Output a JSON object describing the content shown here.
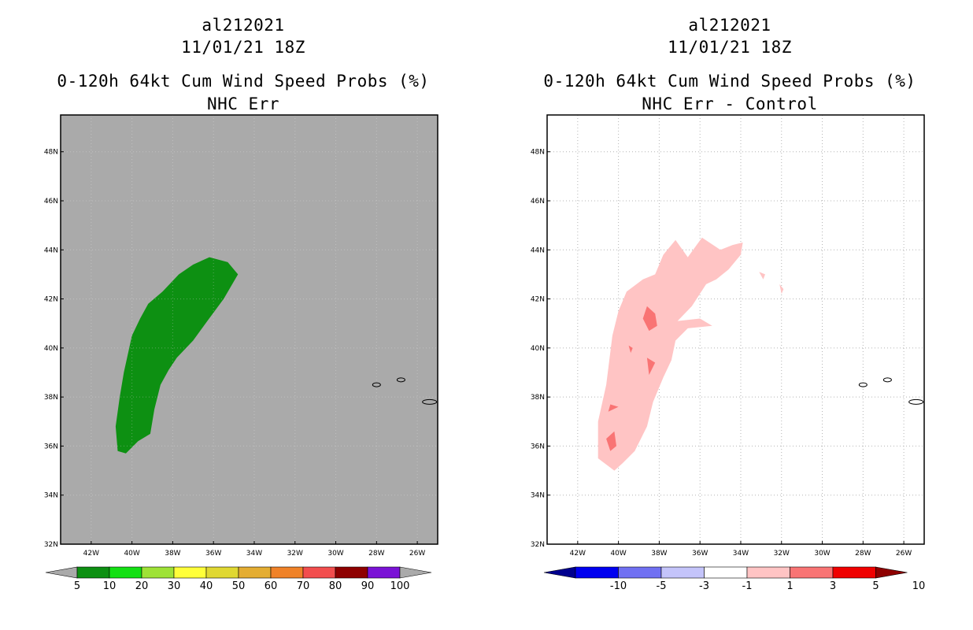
{
  "colors": {
    "left_background": "#aaaaaa",
    "right_background": "#ffffff",
    "prob_green": "#0d9012",
    "diff_light_pink": "#ffc4c4",
    "diff_pink": "#f97474"
  },
  "axes": {
    "lat_labels": [
      "48N",
      "46N",
      "44N",
      "42N",
      "40N",
      "38N",
      "36N",
      "34N",
      "32N"
    ],
    "lon_labels": [
      "42W",
      "40W",
      "38W",
      "36W",
      "34W",
      "32W",
      "30W",
      "28W",
      "26W"
    ],
    "lat_range": [
      32,
      49.5
    ],
    "lon_range": [
      -43.5,
      -25
    ]
  },
  "left": {
    "title_line1": "al212021",
    "title_line2": "11/01/21 18Z",
    "title_line3": "0-120h 64kt Cum Wind Speed Probs (%)",
    "title_line4": "NHC Err",
    "colorbar": {
      "labels": [
        "5",
        "10",
        "20",
        "30",
        "40",
        "50",
        "60",
        "70",
        "80",
        "90",
        "100"
      ],
      "colors": [
        "#aaaaaa",
        "#0d9012",
        "#13e013",
        "#9ee236",
        "#ffff3a",
        "#e0d832",
        "#e4ad32",
        "#f08228",
        "#f24e4e",
        "#8e0000",
        "#7a12d6",
        "#aaaaaa"
      ]
    }
  },
  "right": {
    "title_line1": "al212021",
    "title_line2": "11/01/21 18Z",
    "title_line3": "0-120h 64kt Cum Wind Speed Probs (%)",
    "title_line4": "NHC Err - Control",
    "colorbar": {
      "labels": [
        "-10",
        "-5",
        "-3",
        "-1",
        "1",
        "3",
        "5",
        "10"
      ],
      "colors": [
        "#00008e",
        "#0000f0",
        "#7070f2",
        "#c4c4fa",
        "#ffffff",
        "#ffc4c4",
        "#f97474",
        "#f00000",
        "#8e0000"
      ]
    }
  },
  "chart_data": [
    {
      "type": "map",
      "title": "0-120h 64kt Cum Wind Speed Probs (%) - NHC Err",
      "regions": [
        {
          "category": "5-10%",
          "lon_lat": [
            [
              -40.7,
              35.8
            ],
            [
              -40.8,
              36.8
            ],
            [
              -40.6,
              38.0
            ],
            [
              -40.4,
              39.0
            ],
            [
              -40.0,
              40.5
            ],
            [
              -39.6,
              41.2
            ],
            [
              -39.2,
              41.8
            ],
            [
              -38.5,
              42.3
            ],
            [
              -37.7,
              43.0
            ],
            [
              -37.0,
              43.4
            ],
            [
              -36.2,
              43.7
            ],
            [
              -35.3,
              43.5
            ],
            [
              -34.8,
              43.0
            ],
            [
              -35.5,
              42.0
            ],
            [
              -36.3,
              41.1
            ],
            [
              -37.0,
              40.3
            ],
            [
              -37.8,
              39.6
            ],
            [
              -38.2,
              39.1
            ],
            [
              -38.6,
              38.5
            ],
            [
              -38.9,
              37.5
            ],
            [
              -39.1,
              36.5
            ],
            [
              -39.7,
              36.2
            ],
            [
              -40.3,
              35.7
            ]
          ]
        }
      ],
      "islands_lon_lat": [
        [
          -28.0,
          38.5
        ],
        [
          -26.8,
          38.7
        ],
        [
          -25.4,
          37.8
        ]
      ]
    },
    {
      "type": "map",
      "title": "0-120h 64kt Cum Wind Speed Probs (%) - NHC Err - Control",
      "regions": [
        {
          "category": "1-3",
          "lon_lat": [
            [
              -40.2,
              35.0
            ],
            [
              -41.0,
              35.5
            ],
            [
              -41.0,
              37.0
            ],
            [
              -40.6,
              38.5
            ],
            [
              -40.3,
              40.5
            ],
            [
              -40.0,
              41.5
            ],
            [
              -39.6,
              42.3
            ],
            [
              -38.8,
              42.8
            ],
            [
              -38.2,
              43.0
            ],
            [
              -37.8,
              43.8
            ],
            [
              -37.2,
              44.4
            ],
            [
              -36.6,
              43.7
            ],
            [
              -35.9,
              44.5
            ],
            [
              -35.0,
              44.0
            ],
            [
              -34.4,
              44.2
            ],
            [
              -33.9,
              44.3
            ],
            [
              -34.0,
              43.8
            ],
            [
              -34.6,
              43.2
            ],
            [
              -35.2,
              42.8
            ],
            [
              -35.7,
              42.6
            ],
            [
              -36.4,
              41.7
            ],
            [
              -37.1,
              41.1
            ],
            [
              -36.0,
              41.2
            ],
            [
              -35.4,
              40.9
            ],
            [
              -36.6,
              40.8
            ],
            [
              -37.2,
              40.3
            ],
            [
              -37.4,
              39.5
            ],
            [
              -37.8,
              38.8
            ],
            [
              -38.3,
              37.8
            ],
            [
              -38.6,
              36.8
            ],
            [
              -39.2,
              35.8
            ],
            [
              -39.8,
              35.3
            ]
          ]
        },
        {
          "category": "1-3",
          "lon_lat": [
            [
              -33.1,
              43.1
            ],
            [
              -32.8,
              43.0
            ],
            [
              -32.9,
              42.8
            ]
          ]
        },
        {
          "category": "1-3",
          "lon_lat": [
            [
              -32.1,
              42.6
            ],
            [
              -31.9,
              42.4
            ],
            [
              -32.0,
              42.2
            ]
          ]
        },
        {
          "category": "3-5",
          "lon_lat": [
            [
              -38.5,
              40.7
            ],
            [
              -38.8,
              41.2
            ],
            [
              -38.6,
              41.7
            ],
            [
              -38.2,
              41.4
            ],
            [
              -38.1,
              40.9
            ]
          ]
        },
        {
          "category": "3-5",
          "lon_lat": [
            [
              -38.5,
              38.9
            ],
            [
              -38.6,
              39.6
            ],
            [
              -38.2,
              39.4
            ]
          ]
        },
        {
          "category": "3-5",
          "lon_lat": [
            [
              -39.5,
              40.1
            ],
            [
              -39.3,
              40.0
            ],
            [
              -39.4,
              39.8
            ]
          ]
        },
        {
          "category": "3-5",
          "lon_lat": [
            [
              -40.5,
              37.4
            ],
            [
              -40.0,
              37.6
            ],
            [
              -40.4,
              37.7
            ]
          ]
        },
        {
          "category": "3-5",
          "lon_lat": [
            [
              -40.4,
              35.8
            ],
            [
              -40.6,
              36.3
            ],
            [
              -40.2,
              36.6
            ],
            [
              -40.1,
              36.0
            ]
          ]
        }
      ],
      "islands_lon_lat": [
        [
          -28.0,
          38.5
        ],
        [
          -26.8,
          38.7
        ],
        [
          -25.4,
          37.8
        ]
      ]
    }
  ]
}
